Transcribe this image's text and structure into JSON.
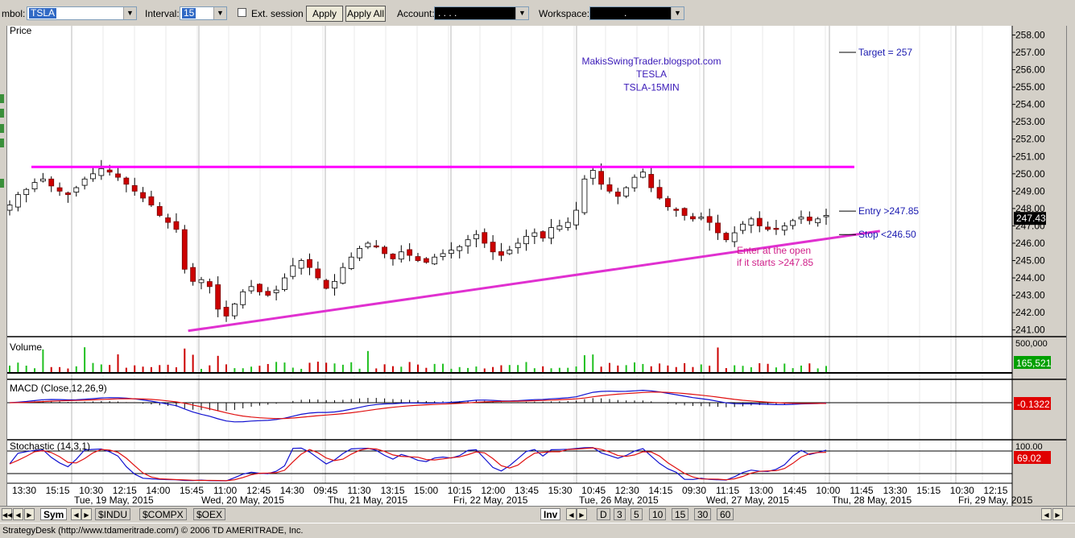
{
  "toolbar": {
    "symbol_label": "mbol:",
    "symbol_value": "TSLA",
    "interval_label": "Interval:",
    "interval_value": "15",
    "ext_session_label": "Ext. session",
    "apply_label": "Apply",
    "apply_all_label": "Apply All",
    "account_label": "Account:",
    "account_value": ". .   .   .",
    "workspace_label": "Workspace:",
    "workspace_value": "."
  },
  "chart_data": {
    "type": "candlestick",
    "symbol": "TSLA",
    "price_panel_label": "Price",
    "watermark": [
      "MakisSwingTrader.blogspot.com",
      "TESLA",
      "TSLA-15MIN"
    ],
    "y_ticks": [
      "258.00",
      "257.00",
      "256.00",
      "255.00",
      "254.00",
      "253.00",
      "252.00",
      "251.00",
      "250.00",
      "249.00",
      "248.00",
      "247.00",
      "246.00",
      "245.00",
      "244.00",
      "243.00",
      "242.00",
      "241.00"
    ],
    "ylim": [
      240.8,
      258.3
    ],
    "last_price": "247.43",
    "x_time_labels": [
      "13:30",
      "15:15",
      "10:30",
      "12:15",
      "14:00",
      "15:45",
      "11:00",
      "12:45",
      "14:30",
      "09:45",
      "11:30",
      "13:15",
      "15:00",
      "10:15",
      "12:00",
      "13:45",
      "15:30",
      "10:45",
      "12:30",
      "14:15",
      "09:30",
      "11:15",
      "13:00",
      "14:45",
      "10:00",
      "11:45",
      "13:30",
      "15:15",
      "10:30",
      "12:15"
    ],
    "x_date_labels": [
      "Tue, 19 May, 2015",
      "Wed, 20 May, 2015",
      "Thu, 21 May, 2015",
      "Fri, 22 May, 2015",
      "Tue, 26 May, 2015",
      "Wed, 27 May, 2015",
      "Thu, 28 May, 2015",
      "Fri, 29 May, 2015"
    ],
    "close_path": [
      248.2,
      248.8,
      249.1,
      249.5,
      249.7,
      249.3,
      249.0,
      248.8,
      249.2,
      249.7,
      250.0,
      250.3,
      250.1,
      249.8,
      249.4,
      249.0,
      248.6,
      248.2,
      247.6,
      247.2,
      246.8,
      244.5,
      243.8,
      243.9,
      243.5,
      242.2,
      241.8,
      242.5,
      243.2,
      243.5,
      243.2,
      243.0,
      243.3,
      244.0,
      244.7,
      245.0,
      244.6,
      244.0,
      243.4,
      243.8,
      244.6,
      245.2,
      245.7,
      246.0,
      245.8,
      245.4,
      245.1,
      245.5,
      245.3,
      245.0,
      244.9,
      245.2,
      245.4,
      245.6,
      245.8,
      246.2,
      246.5,
      246.0,
      245.5,
      245.3,
      245.6,
      246.0,
      246.4,
      246.6,
      246.3,
      246.9,
      247.0,
      247.2,
      247.9,
      249.7,
      250.2,
      249.4,
      249.0,
      248.7,
      249.2,
      249.8,
      250.1,
      249.2,
      248.6,
      248.1,
      247.9,
      247.6,
      247.4,
      247.5,
      247.2,
      246.6,
      246.2,
      246.6,
      247.1,
      247.4,
      247.0,
      246.8,
      246.8,
      247.0,
      247.3,
      247.5,
      247.3,
      247.4,
      247.6
    ],
    "annotations": {
      "resistance": 250.4,
      "support": {
        "from": [
          0.18,
          240.95
        ],
        "to": [
          1.04,
          246.7
        ]
      },
      "target": {
        "label": "Target = 257",
        "value": 257.0
      },
      "entry": {
        "label": "Entry >247.85",
        "value": 247.85
      },
      "stop": {
        "label": "Stop <246.50",
        "value": 246.5
      },
      "note": [
        "Enter at the open",
        "if it starts >247.85"
      ]
    },
    "volume": {
      "label": "Volume",
      "axis_top": "500,000",
      "value": "165,521"
    },
    "macd": {
      "label": "MACD (Close,12,26,9)",
      "value": "-0.1322"
    },
    "stochastic": {
      "label": "Stochastic (14,3,1)",
      "axis_top": "100.00",
      "value": "69.02"
    }
  },
  "tabs": {
    "sym": "Sym",
    "symbols": [
      "$INDU",
      "$COMPX",
      "$OEX"
    ],
    "inv": "Inv",
    "intervals": [
      "D",
      "3",
      "5",
      "10",
      "15",
      "30",
      "60"
    ]
  },
  "status": "StrategyDesk (http://www.tdameritrade.com/) © 2006 TD AMERITRADE, Inc."
}
